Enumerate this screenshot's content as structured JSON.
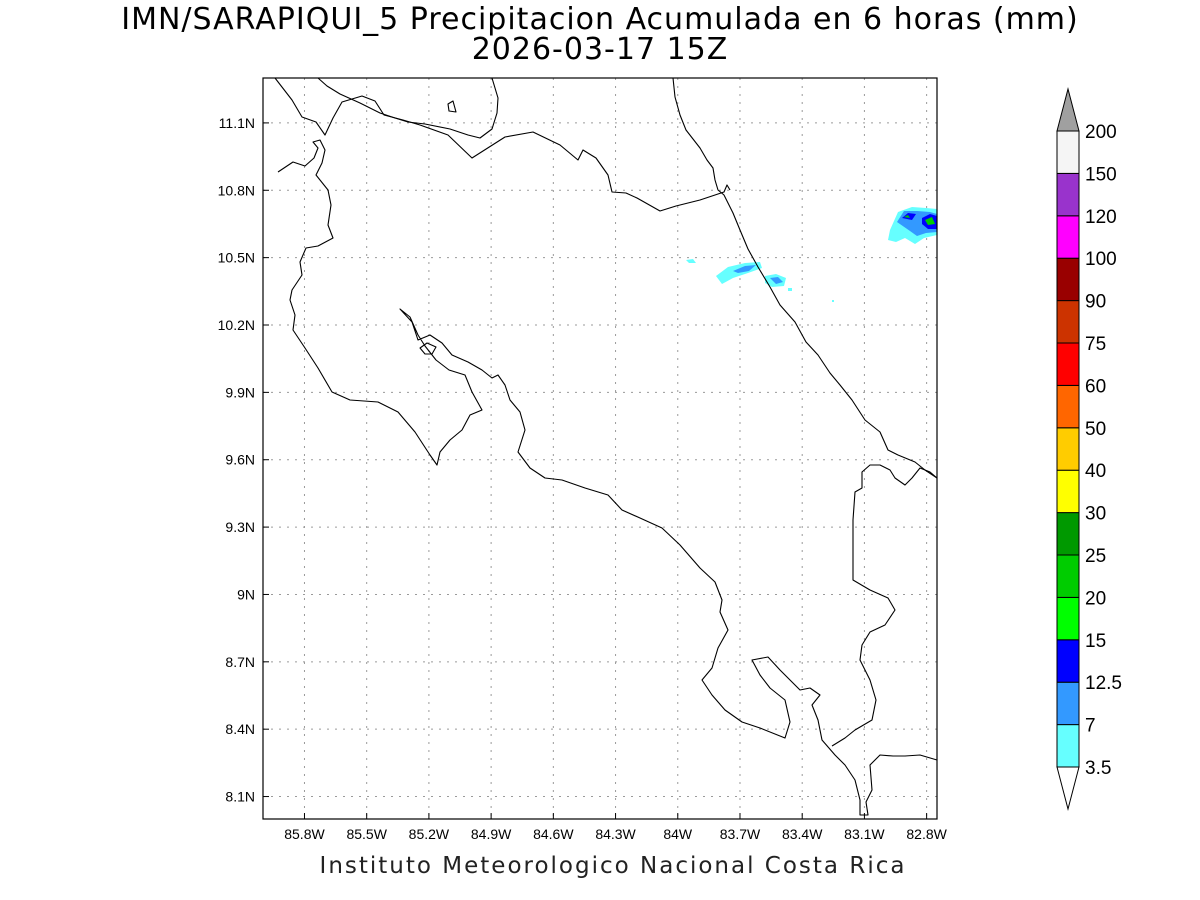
{
  "title": {
    "line1": "IMN/SARAPIQUI_5 Precipitacion Acumulada en 6 horas (mm)",
    "line2": "2026-03-17 15Z"
  },
  "footer": "Instituto Meteorologico Nacional Costa Rica",
  "map": {
    "lon_range": [
      -86.0,
      -82.75
    ],
    "lat_range": [
      8.0,
      11.3
    ],
    "lat_ticks": [
      {
        "value": 11.1,
        "label": "11.1N"
      },
      {
        "value": 10.8,
        "label": "10.8N"
      },
      {
        "value": 10.5,
        "label": "10.5N"
      },
      {
        "value": 10.2,
        "label": "10.2N"
      },
      {
        "value": 9.9,
        "label": "9.9N"
      },
      {
        "value": 9.6,
        "label": "9.6N"
      },
      {
        "value": 9.3,
        "label": "9.3N"
      },
      {
        "value": 9.0,
        "label": "9N"
      },
      {
        "value": 8.7,
        "label": "8.7N"
      },
      {
        "value": 8.4,
        "label": "8.4N"
      },
      {
        "value": 8.1,
        "label": "8.1N"
      }
    ],
    "lon_ticks": [
      {
        "value": -85.8,
        "label": "85.8W"
      },
      {
        "value": -85.5,
        "label": "85.5W"
      },
      {
        "value": -85.2,
        "label": "85.2W"
      },
      {
        "value": -84.9,
        "label": "84.9W"
      },
      {
        "value": -84.6,
        "label": "84.6W"
      },
      {
        "value": -84.3,
        "label": "84.3W"
      },
      {
        "value": -84.0,
        "label": "84W"
      },
      {
        "value": -83.7,
        "label": "83.7W"
      },
      {
        "value": -83.4,
        "label": "83.4W"
      },
      {
        "value": -83.1,
        "label": "83.1W"
      },
      {
        "value": -82.8,
        "label": "82.8W"
      }
    ],
    "grid": true
  },
  "colorbar": {
    "units": "mm",
    "levels": [
      {
        "label": "3.5",
        "color": "#66ffff"
      },
      {
        "label": "7",
        "color": "#3399ff"
      },
      {
        "label": "12.5",
        "color": "#0000ff"
      },
      {
        "label": "15",
        "color": "#00ff00"
      },
      {
        "label": "20",
        "color": "#00cc00"
      },
      {
        "label": "25",
        "color": "#009900"
      },
      {
        "label": "30",
        "color": "#ffff00"
      },
      {
        "label": "40",
        "color": "#ffcc00"
      },
      {
        "label": "50",
        "color": "#ff6600"
      },
      {
        "label": "60",
        "color": "#ff0000"
      },
      {
        "label": "75",
        "color": "#cc3300"
      },
      {
        "label": "90",
        "color": "#990000"
      },
      {
        "label": "100",
        "color": "#ff00ff"
      },
      {
        "label": "120",
        "color": "#9933cc"
      },
      {
        "label": "150",
        "color": "#f5f5f5"
      },
      {
        "label": "200",
        "color": "#a0a0a0"
      }
    ],
    "under_color": "#ffffff",
    "over_color": "#a0a0a0"
  }
}
